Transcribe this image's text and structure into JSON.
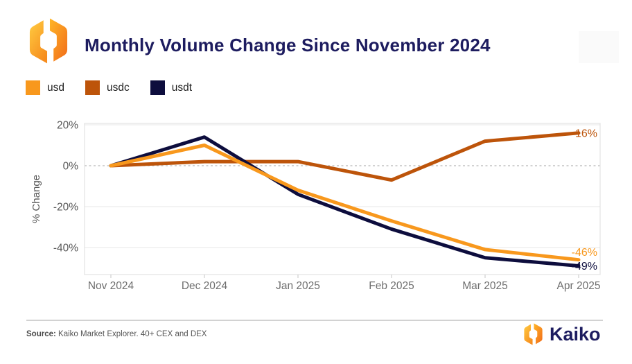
{
  "header": {
    "title": "Monthly Volume Change Since November 2024"
  },
  "legend": [
    {
      "label": "usd",
      "color": "#F8981D"
    },
    {
      "label": "usdc",
      "color": "#BD540A"
    },
    {
      "label": "usdt",
      "color": "#0D0D3D"
    }
  ],
  "chart_data": {
    "type": "line",
    "title": "Monthly Volume Change Since November 2024",
    "categories": [
      "Nov 2024",
      "Dec 2024",
      "Jan 2025",
      "Feb 2025",
      "Mar 2025",
      "Apr 2025"
    ],
    "series": [
      {
        "name": "usdc",
        "color": "#BD540A",
        "values": [
          0,
          2,
          2,
          -7,
          12,
          16
        ],
        "end_label": "16%"
      },
      {
        "name": "usdt",
        "color": "#0D0D3D",
        "values": [
          0,
          14,
          -14,
          -31,
          -45,
          -49
        ],
        "end_label": "-49%"
      },
      {
        "name": "usd",
        "color": "#F8981D",
        "values": [
          0,
          10,
          -12,
          -27,
          -41,
          -46
        ],
        "end_label": "-46%"
      }
    ],
    "ylabel": "% Change",
    "xlabel": "",
    "yticks": [
      {
        "value": 20,
        "label": "20%"
      },
      {
        "value": 0,
        "label": "0%"
      },
      {
        "value": -20,
        "label": "-20%"
      },
      {
        "value": -40,
        "label": "-40%"
      }
    ],
    "ylim": [
      -53,
      21
    ],
    "grid": "horizontal",
    "zero_line": "dashed",
    "legend_position": "top-left"
  },
  "footer": {
    "source_label": "Source:",
    "source_text": " Kaiko Market Explorer. 40+ CEX and DEX",
    "brand": "Kaiko"
  }
}
